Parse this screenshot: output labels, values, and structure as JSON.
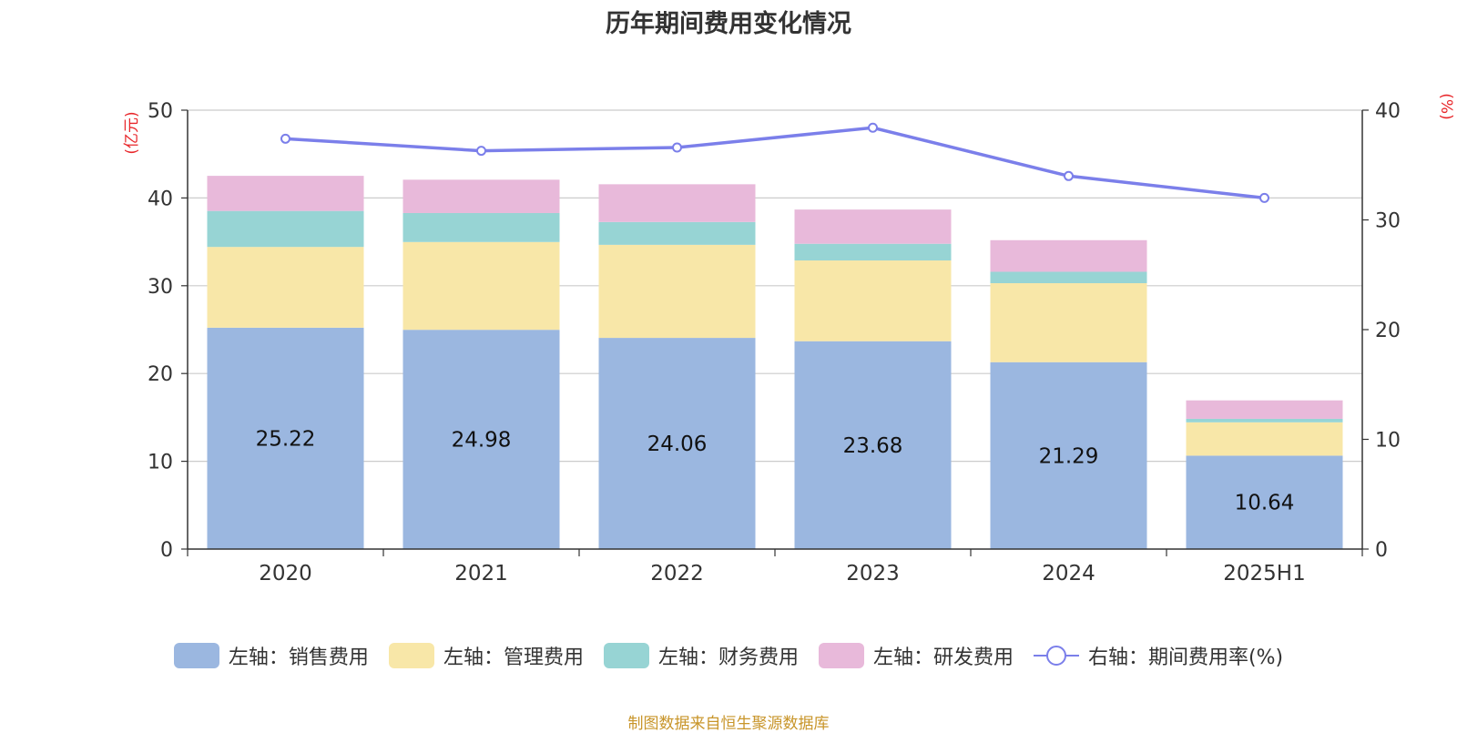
{
  "chart_data": {
    "type": "bar",
    "title": "历年期间费用变化情况",
    "categories": [
      "2020",
      "2021",
      "2022",
      "2023",
      "2024",
      "2025H1"
    ],
    "stacked": true,
    "left_axis": {
      "unit_label": "(亿元)",
      "ylim": [
        0,
        50
      ],
      "ticks": [
        "0",
        "10",
        "20",
        "30",
        "40",
        "50"
      ]
    },
    "right_axis": {
      "unit_label": "(%)",
      "ylim": [
        0,
        40
      ],
      "ticks": [
        "0",
        "10",
        "20",
        "30",
        "40"
      ]
    },
    "series": [
      {
        "name": "左轴：销售费用",
        "axis": "left",
        "kind": "bar",
        "color": "#9bb7e0",
        "values": [
          25.22,
          24.98,
          24.06,
          23.68,
          21.29,
          10.64
        ],
        "show_labels": true
      },
      {
        "name": "左轴：管理费用",
        "axis": "left",
        "kind": "bar",
        "color": "#f8e7a8",
        "values": [
          9.2,
          10.0,
          10.6,
          9.2,
          9.0,
          3.8
        ]
      },
      {
        "name": "左轴：财务费用",
        "axis": "left",
        "kind": "bar",
        "color": "#97d4d4",
        "values": [
          4.1,
          3.3,
          2.6,
          1.9,
          1.3,
          0.4
        ]
      },
      {
        "name": "左轴：研发费用",
        "axis": "left",
        "kind": "bar",
        "color": "#e8b9da",
        "values": [
          4.0,
          3.8,
          4.3,
          3.9,
          3.6,
          2.1
        ]
      },
      {
        "name": "右轴：期间费用率(%)",
        "axis": "right",
        "kind": "line",
        "color": "#7b7fea",
        "values": [
          37.4,
          36.3,
          36.6,
          38.4,
          34.0,
          32.0
        ]
      }
    ],
    "grid": true,
    "legend_position": "bottom"
  },
  "source_note": "制图数据来自恒生聚源数据库"
}
